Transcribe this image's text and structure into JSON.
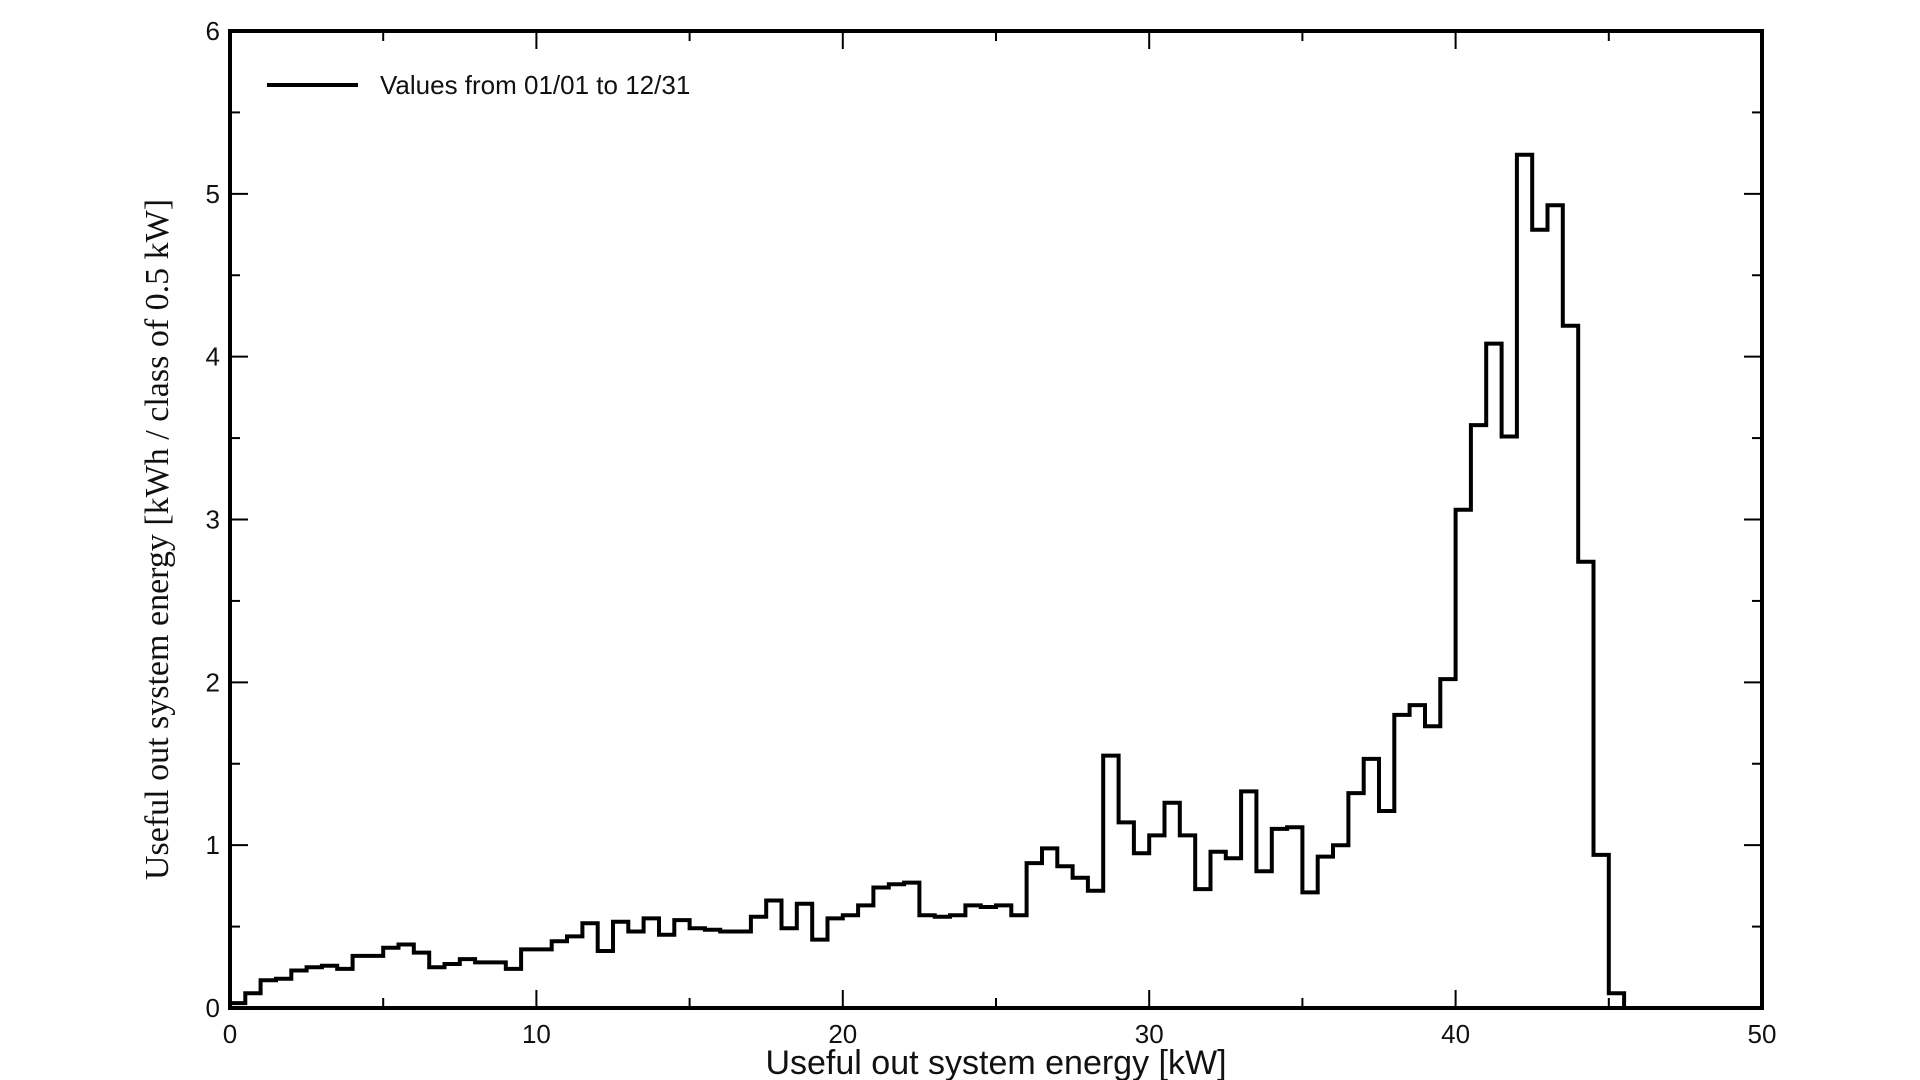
{
  "chart_data": {
    "type": "line",
    "step": true,
    "xlabel": "Useful out system energy [kW]",
    "ylabel": "Useful out system energy [kWh / class of 0.5 kW]",
    "xlim": [
      0,
      50
    ],
    "ylim": [
      0,
      6
    ],
    "x_ticks": [
      0,
      10,
      20,
      30,
      40,
      50
    ],
    "y_ticks": [
      0,
      1,
      2,
      3,
      4,
      5,
      6
    ],
    "grid": false,
    "legend_position": "top-left",
    "line_color": "#000000",
    "series": [
      {
        "name": "Values from 01/01 to 12/31",
        "x": [
          0,
          0.5,
          1,
          1.5,
          2,
          2.5,
          3,
          3.5,
          4,
          4.5,
          5,
          5.5,
          6,
          6.5,
          7,
          7.5,
          8,
          8.5,
          9,
          9.5,
          10,
          10.5,
          11,
          11.5,
          12,
          12.5,
          13,
          13.5,
          14,
          14.5,
          15,
          15.5,
          16,
          16.5,
          17,
          17.5,
          18,
          18.5,
          19,
          19.5,
          20,
          20.5,
          21,
          21.5,
          22,
          22.5,
          23,
          23.5,
          24,
          24.5,
          25,
          25.5,
          26,
          26.5,
          27,
          27.5,
          28,
          28.5,
          29,
          29.5,
          30,
          30.5,
          31,
          31.5,
          32,
          32.5,
          33,
          33.5,
          34,
          34.5,
          35,
          35.5,
          36,
          36.5,
          37,
          37.5,
          38,
          38.5,
          39,
          39.5,
          40,
          40.5,
          41,
          41.5,
          42,
          42.5,
          43,
          43.5,
          44,
          44.5,
          45
        ],
        "values": [
          0.03,
          0.09,
          0.17,
          0.18,
          0.23,
          0.25,
          0.26,
          0.24,
          0.32,
          0.32,
          0.37,
          0.39,
          0.34,
          0.25,
          0.27,
          0.3,
          0.28,
          0.28,
          0.24,
          0.36,
          0.36,
          0.41,
          0.44,
          0.52,
          0.35,
          0.53,
          0.47,
          0.55,
          0.45,
          0.54,
          0.49,
          0.48,
          0.47,
          0.47,
          0.56,
          0.66,
          0.49,
          0.64,
          0.42,
          0.55,
          0.57,
          0.63,
          0.74,
          0.76,
          0.77,
          0.57,
          0.56,
          0.57,
          0.63,
          0.62,
          0.63,
          0.57,
          0.89,
          0.98,
          0.87,
          0.8,
          0.72,
          1.55,
          1.14,
          0.95,
          1.06,
          1.26,
          1.06,
          0.73,
          0.96,
          0.92,
          1.33,
          0.84,
          1.1,
          1.11,
          0.71,
          0.93,
          1.0,
          1.32,
          1.53,
          1.21,
          1.8,
          1.86,
          1.73,
          2.02,
          3.06,
          3.58,
          4.08,
          3.51,
          5.24,
          4.78,
          4.93,
          4.19,
          2.74,
          0.94,
          0.09
        ]
      }
    ]
  }
}
